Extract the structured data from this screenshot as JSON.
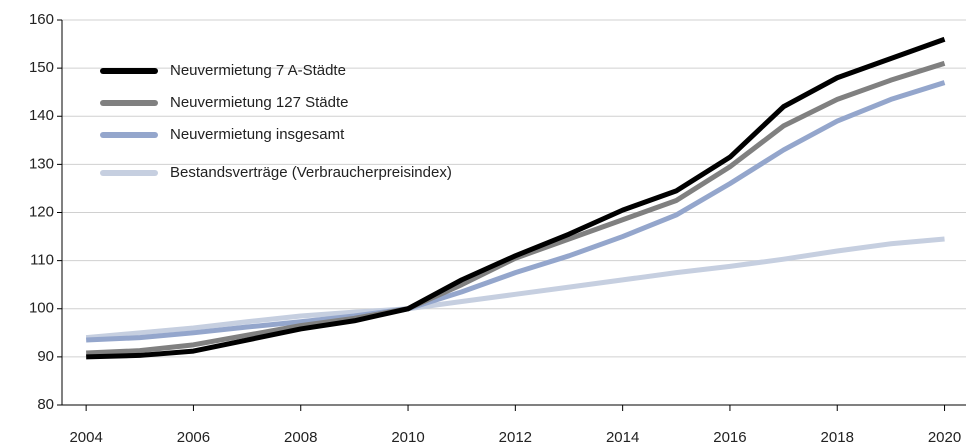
{
  "chart_data": {
    "type": "line",
    "x": [
      2004,
      2005,
      2006,
      2007,
      2008,
      2009,
      2010,
      2011,
      2012,
      2013,
      2014,
      2015,
      2016,
      2017,
      2018,
      2019,
      2020
    ],
    "series": [
      {
        "name": "Neuvermietung 7 A-Städte",
        "color": "#000000",
        "values": [
          90,
          90.3,
          91.2,
          93.5,
          95.8,
          97.5,
          100,
          106,
          111,
          115.5,
          120.5,
          124.5,
          131.5,
          142,
          148,
          152,
          156
        ]
      },
      {
        "name": "Neuvermietung 127 Städte",
        "color": "#808080",
        "values": [
          90.8,
          91.3,
          92.5,
          94.5,
          96.5,
          98,
          100,
          105,
          110.5,
          114.5,
          118.5,
          122.5,
          129.5,
          138,
          143.5,
          147.5,
          151
        ]
      },
      {
        "name": "Neuvermietung insgesamt",
        "color": "#94a6cc",
        "values": [
          93.5,
          94,
          95,
          96.2,
          97.3,
          98.5,
          100,
          103.5,
          107.5,
          111,
          115,
          119.5,
          126,
          133,
          139,
          143.5,
          147
        ]
      },
      {
        "name": "Bestandsverträge (Verbraucherpreisindex)",
        "color": "#c6cfe0",
        "values": [
          94,
          95,
          96,
          97.3,
          98.5,
          99.3,
          100,
          101.5,
          103,
          104.5,
          106,
          107.5,
          108.8,
          110.3,
          112,
          113.5,
          114.5
        ]
      }
    ],
    "xlim": [
      2003.55,
      2020.4
    ],
    "xticks": [
      2004,
      2006,
      2008,
      2010,
      2012,
      2014,
      2016,
      2018,
      2020
    ],
    "ylim": [
      80,
      160
    ],
    "yticks": [
      80,
      90,
      100,
      110,
      120,
      130,
      140,
      150,
      160
    ],
    "grid": true,
    "legend": "upper-left"
  }
}
